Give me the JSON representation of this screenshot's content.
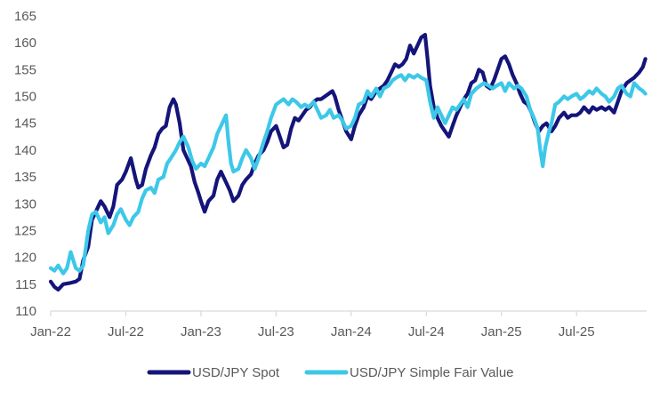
{
  "chart_data": {
    "type": "line",
    "title": "",
    "xlabel": "",
    "ylabel": "",
    "ylim": [
      110,
      165
    ],
    "yticks": [
      110,
      115,
      120,
      125,
      130,
      135,
      140,
      145,
      150,
      155,
      160,
      165
    ],
    "xlim": [
      0,
      47.6
    ],
    "xticks": [
      {
        "x": 0,
        "label": "Jan-22"
      },
      {
        "x": 6,
        "label": "Jul-22"
      },
      {
        "x": 12,
        "label": "Jan-23"
      },
      {
        "x": 18,
        "label": "Jul-23"
      },
      {
        "x": 24,
        "label": "Jan-24"
      },
      {
        "x": 30,
        "label": "Jul-24"
      },
      {
        "x": 36,
        "label": "Jan-25"
      },
      {
        "x": 42,
        "label": "Jul-25"
      }
    ],
    "grid": false,
    "legend_position": "bottom",
    "x_unit": "months since Jan-2022",
    "series": [
      {
        "name": "USD/JPY Spot",
        "color": "#14147a",
        "points": [
          [
            0,
            115.5
          ],
          [
            0.3,
            114.5
          ],
          [
            0.6,
            114.0
          ],
          [
            1.0,
            115.0
          ],
          [
            1.5,
            115.2
          ],
          [
            2.0,
            115.5
          ],
          [
            2.3,
            116.0
          ],
          [
            2.6,
            119.5
          ],
          [
            3.0,
            122.0
          ],
          [
            3.3,
            127.0
          ],
          [
            3.6,
            128.5
          ],
          [
            4.0,
            130.5
          ],
          [
            4.3,
            129.5
          ],
          [
            4.7,
            127.5
          ],
          [
            5.0,
            129.5
          ],
          [
            5.3,
            133.5
          ],
          [
            5.7,
            134.5
          ],
          [
            6.0,
            136.0
          ],
          [
            6.4,
            138.5
          ],
          [
            6.8,
            134.5
          ],
          [
            7.0,
            133.0
          ],
          [
            7.3,
            133.5
          ],
          [
            7.6,
            136.5
          ],
          [
            8.0,
            139.0
          ],
          [
            8.3,
            140.5
          ],
          [
            8.6,
            143.0
          ],
          [
            8.9,
            144.0
          ],
          [
            9.2,
            144.5
          ],
          [
            9.5,
            148.0
          ],
          [
            9.8,
            149.5
          ],
          [
            10.0,
            148.5
          ],
          [
            10.3,
            145.0
          ],
          [
            10.6,
            140.0
          ],
          [
            10.9,
            138.5
          ],
          [
            11.2,
            137.0
          ],
          [
            11.5,
            134.0
          ],
          [
            11.8,
            132.0
          ],
          [
            12.0,
            130.5
          ],
          [
            12.3,
            128.5
          ],
          [
            12.6,
            130.5
          ],
          [
            13.0,
            131.5
          ],
          [
            13.3,
            134.5
          ],
          [
            13.6,
            136.0
          ],
          [
            14.0,
            134.0
          ],
          [
            14.3,
            132.5
          ],
          [
            14.6,
            130.5
          ],
          [
            15.0,
            131.5
          ],
          [
            15.3,
            133.5
          ],
          [
            15.6,
            134.5
          ],
          [
            16.0,
            135.5
          ],
          [
            16.3,
            137.5
          ],
          [
            16.6,
            139.0
          ],
          [
            17.0,
            140.0
          ],
          [
            17.3,
            141.5
          ],
          [
            17.6,
            143.5
          ],
          [
            18.0,
            144.5
          ],
          [
            18.3,
            142.5
          ],
          [
            18.6,
            140.5
          ],
          [
            18.9,
            141.0
          ],
          [
            19.2,
            144.0
          ],
          [
            19.5,
            146.0
          ],
          [
            19.8,
            145.5
          ],
          [
            20.1,
            146.5
          ],
          [
            20.4,
            147.5
          ],
          [
            20.7,
            148.0
          ],
          [
            21.0,
            149.0
          ],
          [
            21.3,
            149.5
          ],
          [
            21.6,
            149.5
          ],
          [
            21.9,
            150.0
          ],
          [
            22.2,
            150.5
          ],
          [
            22.5,
            151.0
          ],
          [
            22.7,
            150.0
          ],
          [
            23.0,
            147.5
          ],
          [
            23.3,
            145.5
          ],
          [
            23.6,
            143.5
          ],
          [
            24.0,
            142.0
          ],
          [
            24.3,
            144.5
          ],
          [
            24.6,
            146.5
          ],
          [
            25.0,
            148.0
          ],
          [
            25.3,
            150.0
          ],
          [
            25.6,
            149.5
          ],
          [
            26.0,
            151.0
          ],
          [
            26.3,
            151.5
          ],
          [
            26.6,
            152.0
          ],
          [
            26.9,
            153.0
          ],
          [
            27.2,
            154.5
          ],
          [
            27.5,
            156.0
          ],
          [
            27.8,
            155.5
          ],
          [
            28.1,
            156.0
          ],
          [
            28.4,
            157.0
          ],
          [
            28.7,
            159.5
          ],
          [
            29.0,
            158.0
          ],
          [
            29.3,
            159.5
          ],
          [
            29.6,
            161.0
          ],
          [
            29.9,
            161.5
          ],
          [
            30.1,
            157.0
          ],
          [
            30.3,
            152.0
          ],
          [
            30.6,
            148.0
          ],
          [
            30.9,
            146.0
          ],
          [
            31.2,
            144.5
          ],
          [
            31.5,
            143.5
          ],
          [
            31.8,
            142.5
          ],
          [
            32.1,
            144.5
          ],
          [
            32.4,
            146.5
          ],
          [
            32.7,
            148.0
          ],
          [
            33.0,
            149.5
          ],
          [
            33.3,
            150.5
          ],
          [
            33.6,
            152.5
          ],
          [
            33.9,
            153.0
          ],
          [
            34.2,
            155.0
          ],
          [
            34.5,
            154.5
          ],
          [
            34.8,
            152.0
          ],
          [
            35.1,
            151.5
          ],
          [
            35.4,
            153.0
          ],
          [
            35.7,
            155.0
          ],
          [
            36.0,
            157.0
          ],
          [
            36.3,
            157.5
          ],
          [
            36.6,
            156.0
          ],
          [
            36.9,
            154.0
          ],
          [
            37.2,
            152.5
          ],
          [
            37.5,
            150.5
          ],
          [
            37.8,
            149.0
          ],
          [
            38.1,
            148.5
          ],
          [
            38.4,
            147.0
          ],
          [
            38.7,
            145.0
          ],
          [
            39.0,
            143.5
          ],
          [
            39.3,
            144.5
          ],
          [
            39.6,
            145.0
          ],
          [
            40.0,
            143.5
          ],
          [
            40.3,
            144.5
          ],
          [
            40.6,
            146.0
          ],
          [
            41.0,
            147.0
          ],
          [
            41.3,
            146.0
          ],
          [
            41.6,
            146.5
          ],
          [
            42.0,
            146.5
          ],
          [
            42.3,
            147.0
          ],
          [
            42.6,
            148.0
          ],
          [
            43.0,
            147.0
          ],
          [
            43.3,
            148.0
          ],
          [
            43.6,
            147.5
          ],
          [
            44.0,
            148.0
          ],
          [
            44.3,
            147.5
          ],
          [
            44.6,
            148.0
          ],
          [
            45.0,
            147.0
          ],
          [
            45.3,
            149.0
          ],
          [
            45.6,
            151.0
          ],
          [
            46.0,
            152.5
          ],
          [
            46.3,
            153.0
          ],
          [
            46.6,
            153.5
          ],
          [
            47.0,
            154.5
          ],
          [
            47.3,
            155.5
          ],
          [
            47.5,
            157.0
          ]
        ]
      },
      {
        "name": "USD/JPY Simple Fair Value",
        "color": "#3dc8e8",
        "points": [
          [
            0,
            118.0
          ],
          [
            0.3,
            117.5
          ],
          [
            0.6,
            118.5
          ],
          [
            1.0,
            117.0
          ],
          [
            1.3,
            118.0
          ],
          [
            1.6,
            121.0
          ],
          [
            2.0,
            118.0
          ],
          [
            2.3,
            117.5
          ],
          [
            2.6,
            118.5
          ],
          [
            3.0,
            125.0
          ],
          [
            3.3,
            128.0
          ],
          [
            3.6,
            128.5
          ],
          [
            4.0,
            126.5
          ],
          [
            4.3,
            127.5
          ],
          [
            4.6,
            124.5
          ],
          [
            5.0,
            126.0
          ],
          [
            5.3,
            128.0
          ],
          [
            5.6,
            129.0
          ],
          [
            6.0,
            127.0
          ],
          [
            6.3,
            126.0
          ],
          [
            6.6,
            127.5
          ],
          [
            7.0,
            128.5
          ],
          [
            7.3,
            131.0
          ],
          [
            7.6,
            132.5
          ],
          [
            8.0,
            133.0
          ],
          [
            8.3,
            132.0
          ],
          [
            8.6,
            134.5
          ],
          [
            9.0,
            135.0
          ],
          [
            9.3,
            137.5
          ],
          [
            9.6,
            138.5
          ],
          [
            10.0,
            140.0
          ],
          [
            10.3,
            141.5
          ],
          [
            10.6,
            142.5
          ],
          [
            11.0,
            140.5
          ],
          [
            11.3,
            138.0
          ],
          [
            11.6,
            136.5
          ],
          [
            12.0,
            137.5
          ],
          [
            12.3,
            137.0
          ],
          [
            12.6,
            138.5
          ],
          [
            13.0,
            140.5
          ],
          [
            13.3,
            143.0
          ],
          [
            13.6,
            144.5
          ],
          [
            14.0,
            146.5
          ],
          [
            14.2,
            141.5
          ],
          [
            14.4,
            137.5
          ],
          [
            14.6,
            136.0
          ],
          [
            15.0,
            136.5
          ],
          [
            15.3,
            138.5
          ],
          [
            15.6,
            140.0
          ],
          [
            16.0,
            138.5
          ],
          [
            16.3,
            136.5
          ],
          [
            16.6,
            138.5
          ],
          [
            17.0,
            141.5
          ],
          [
            17.3,
            143.5
          ],
          [
            17.6,
            146.0
          ],
          [
            18.0,
            148.5
          ],
          [
            18.3,
            149.0
          ],
          [
            18.6,
            149.5
          ],
          [
            19.0,
            148.5
          ],
          [
            19.3,
            149.5
          ],
          [
            19.6,
            149.0
          ],
          [
            20.0,
            148.0
          ],
          [
            20.3,
            148.5
          ],
          [
            20.6,
            148.0
          ],
          [
            21.0,
            149.0
          ],
          [
            21.3,
            147.5
          ],
          [
            21.6,
            146.0
          ],
          [
            22.0,
            146.5
          ],
          [
            22.3,
            147.5
          ],
          [
            22.6,
            146.0
          ],
          [
            23.0,
            146.5
          ],
          [
            23.3,
            145.5
          ],
          [
            23.6,
            144.0
          ],
          [
            24.0,
            144.5
          ],
          [
            24.3,
            146.0
          ],
          [
            24.6,
            148.5
          ],
          [
            25.0,
            149.0
          ],
          [
            25.3,
            151.0
          ],
          [
            25.6,
            150.0
          ],
          [
            26.0,
            151.5
          ],
          [
            26.3,
            150.0
          ],
          [
            26.6,
            151.5
          ],
          [
            27.0,
            152.0
          ],
          [
            27.3,
            153.0
          ],
          [
            27.6,
            153.5
          ],
          [
            28.0,
            154.0
          ],
          [
            28.3,
            153.0
          ],
          [
            28.6,
            154.0
          ],
          [
            29.0,
            153.5
          ],
          [
            29.3,
            154.0
          ],
          [
            29.6,
            153.5
          ],
          [
            30.0,
            153.0
          ],
          [
            30.3,
            149.0
          ],
          [
            30.6,
            146.0
          ],
          [
            30.9,
            148.0
          ],
          [
            31.2,
            146.5
          ],
          [
            31.5,
            145.0
          ],
          [
            31.8,
            146.5
          ],
          [
            32.1,
            148.0
          ],
          [
            32.4,
            147.5
          ],
          [
            32.7,
            148.5
          ],
          [
            33.0,
            149.5
          ],
          [
            33.3,
            148.0
          ],
          [
            33.6,
            150.5
          ],
          [
            34.0,
            151.5
          ],
          [
            34.3,
            152.0
          ],
          [
            34.6,
            152.5
          ],
          [
            35.0,
            152.0
          ],
          [
            35.3,
            151.5
          ],
          [
            35.6,
            152.0
          ],
          [
            36.0,
            152.5
          ],
          [
            36.3,
            151.0
          ],
          [
            36.6,
            152.5
          ],
          [
            37.0,
            151.5
          ],
          [
            37.3,
            152.0
          ],
          [
            37.6,
            151.5
          ],
          [
            38.0,
            150.0
          ],
          [
            38.3,
            147.5
          ],
          [
            38.6,
            146.0
          ],
          [
            38.9,
            144.0
          ],
          [
            39.1,
            140.0
          ],
          [
            39.3,
            137.0
          ],
          [
            39.5,
            140.5
          ],
          [
            39.8,
            143.5
          ],
          [
            40.0,
            145.0
          ],
          [
            40.3,
            148.5
          ],
          [
            40.6,
            149.0
          ],
          [
            41.0,
            150.0
          ],
          [
            41.3,
            149.5
          ],
          [
            41.6,
            150.0
          ],
          [
            42.0,
            150.5
          ],
          [
            42.3,
            149.5
          ],
          [
            42.6,
            150.0
          ],
          [
            43.0,
            151.0
          ],
          [
            43.3,
            150.5
          ],
          [
            43.6,
            151.5
          ],
          [
            44.0,
            150.5
          ],
          [
            44.3,
            150.0
          ],
          [
            44.6,
            149.0
          ],
          [
            45.0,
            150.0
          ],
          [
            45.3,
            151.5
          ],
          [
            45.6,
            152.0
          ],
          [
            46.0,
            150.5
          ],
          [
            46.3,
            150.0
          ],
          [
            46.6,
            152.5
          ],
          [
            47.0,
            151.5
          ],
          [
            47.3,
            151.0
          ],
          [
            47.5,
            150.5
          ]
        ]
      }
    ]
  }
}
